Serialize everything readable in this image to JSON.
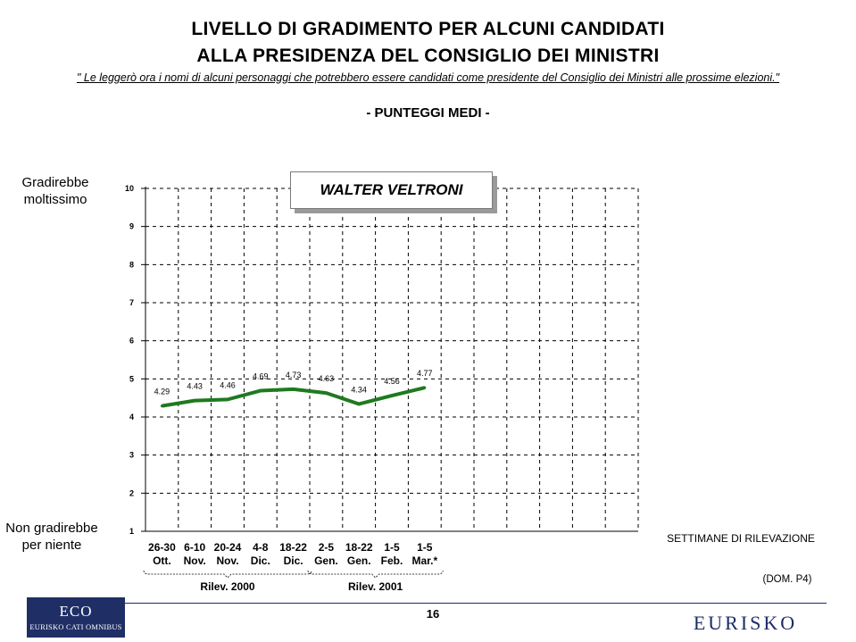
{
  "title_line1": "LIVELLO DI GRADIMENTO PER ALCUNI CANDIDATI",
  "title_line2": "ALLA PRESIDENZA DEL CONSIGLIO DEI MINISTRI",
  "question": "\" Le leggerò ora i nomi di alcuni personaggi che potrebbero essere candidati come presidente del Consiglio dei Ministri alle prossime elezioni.\"",
  "subtitle": "- PUNTEGGI MEDI -",
  "y_top_label": "Gradirebbe moltissimo",
  "y_bottom_label": "Non gradirebbe per niente",
  "candidate": "WALTER VELTRONI",
  "xaxis_title": "SETTIMANE DI RILEVAZIONE",
  "source_note": "(DOM. P4)",
  "page_number": "16",
  "logo_eco_main": "ECO",
  "logo_eco_sub": "EURISKO CATI OMNIBUS",
  "logo_eurisko": "EURISKO",
  "colors": {
    "series": "#1e7a1e",
    "grid": "#000000",
    "logo_bg": "#1f2f66"
  },
  "chart_data": {
    "type": "line",
    "title": "- PUNTEGGI MEDI -",
    "xlabel": "SETTIMANE DI RILEVAZIONE",
    "ylim": [
      1,
      10
    ],
    "yticks": [
      "1",
      "2",
      "3",
      "4",
      "5",
      "6",
      "7",
      "8",
      "9",
      "10"
    ],
    "grid": true,
    "categories": [
      {
        "top": "26-30",
        "bottom": "Ott."
      },
      {
        "top": "6-10",
        "bottom": "Nov."
      },
      {
        "top": "20-24",
        "bottom": "Nov."
      },
      {
        "top": "4-8",
        "bottom": "Dic."
      },
      {
        "top": "18-22",
        "bottom": "Dic."
      },
      {
        "top": "2-5",
        "bottom": "Gen."
      },
      {
        "top": "18-22",
        "bottom": "Gen."
      },
      {
        "top": "1-5",
        "bottom": "Feb."
      },
      {
        "top": "1-5",
        "bottom": "Mar.*"
      }
    ],
    "total_slots": 15,
    "series": [
      {
        "name": "WALTER VELTRONI",
        "values": [
          4.29,
          4.43,
          4.46,
          4.69,
          4.73,
          4.63,
          4.34,
          4.56,
          4.77
        ],
        "labels": [
          "4.29",
          "4.43",
          "4.46",
          "4.69",
          "4.73",
          "4.63",
          "4.34",
          "4.56",
          "4.77"
        ]
      }
    ],
    "groups": [
      {
        "label": "Rilev. 2000",
        "from": 0,
        "to": 4
      },
      {
        "label": "Rilev. 2001",
        "from": 5,
        "to": 8
      }
    ]
  }
}
